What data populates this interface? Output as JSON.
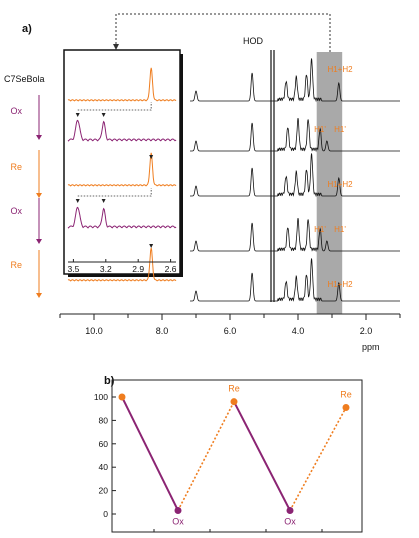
{
  "colors": {
    "black": "#111111",
    "orange": "#ef7d1f",
    "purple": "#8b2473",
    "gray_band": "#a9a9a9"
  },
  "panel_a": {
    "label": "a)",
    "sample_label": "C7SeBola",
    "hod_label": "HOD",
    "band_labels": [
      "H1+H2",
      "H1'",
      "H1'",
      "H1+H2",
      "H1'",
      "H1'",
      "H1+H2"
    ],
    "step_labels": [
      "Ox",
      "Re",
      "Ox",
      "Re"
    ],
    "xlabel": "ppm",
    "x_ticks": [
      "10.0",
      "8.0",
      "6.0",
      "4.0",
      "2.0"
    ],
    "inset_ticks": [
      "3.5",
      "3.2",
      "2.9",
      "2.6"
    ]
  },
  "panel_b": {
    "label": "b)",
    "point_labels": [
      "Re",
      "Re",
      "Ox",
      "Ox"
    ],
    "y_ticks": [
      "100",
      "80",
      "60",
      "40",
      "20",
      "0"
    ]
  },
  "chart_data": [
    {
      "type": "line",
      "title": "",
      "xlabel": "ppm",
      "ylabel": "",
      "xlim": [
        11,
        1
      ],
      "x_ticks": [
        10.0,
        8.0,
        6.0,
        4.0,
        2.0
      ],
      "highlight_band_ppm": [
        3.45,
        2.7
      ],
      "series": [
        {
          "name": "",
          "state": "initial",
          "peaks_ppm": [
            7.0,
            5.35,
            4.75,
            4.35,
            4.05,
            3.75,
            3.6,
            2.8
          ]
        },
        {
          "name": "",
          "state": "Ox",
          "peaks_ppm": [
            7.0,
            5.35,
            4.75,
            4.3,
            4.0,
            3.7,
            3.35,
            3.15
          ]
        },
        {
          "name": "",
          "state": "Re",
          "peaks_ppm": [
            7.0,
            5.35,
            4.75,
            4.35,
            4.05,
            3.75,
            3.6,
            2.8
          ]
        },
        {
          "name": "",
          "state": "Ox",
          "peaks_ppm": [
            7.0,
            5.35,
            4.75,
            4.3,
            4.0,
            3.7,
            3.35,
            3.15
          ]
        },
        {
          "name": "",
          "state": "Re",
          "peaks_ppm": [
            7.0,
            5.35,
            4.75,
            4.35,
            4.05,
            3.75,
            3.6,
            2.8
          ]
        }
      ]
    },
    {
      "type": "line",
      "title": "",
      "xlabel": "",
      "ylabel": "",
      "ylim": [
        0,
        100
      ],
      "y_ticks": [
        0,
        20,
        40,
        60,
        80,
        100
      ],
      "x": [
        1,
        2,
        3,
        4,
        5
      ],
      "series": [
        {
          "name": "",
          "values": [
            100,
            3,
            96,
            3,
            91
          ]
        }
      ],
      "point_labels": [
        "",
        "Ox",
        "Re",
        "Ox",
        "Re"
      ]
    }
  ]
}
